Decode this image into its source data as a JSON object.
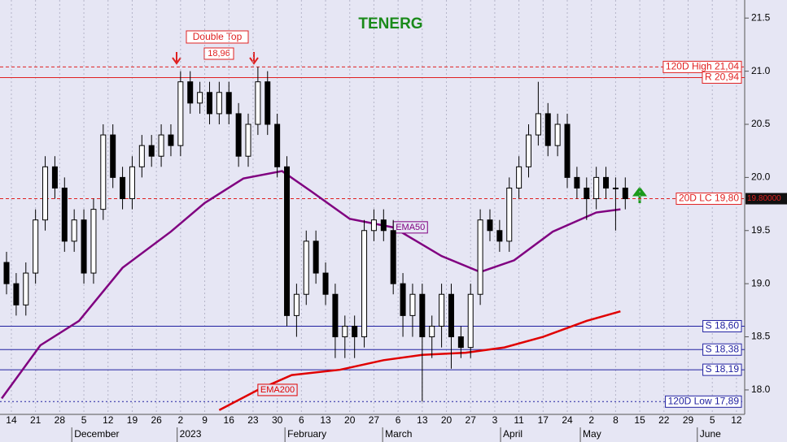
{
  "chart_data": {
    "type": "candlestick",
    "title": "TENERG",
    "x": [
      0,
      2,
      4,
      6,
      8,
      10,
      12,
      14,
      16,
      18,
      20,
      22,
      24,
      26,
      28,
      30,
      32,
      34,
      36,
      38,
      40,
      42,
      44,
      46,
      48,
      50,
      52,
      54,
      56,
      58,
      60,
      62,
      64,
      66,
      68,
      70,
      72,
      74,
      76,
      78,
      80,
      82,
      84,
      86,
      88,
      90,
      92,
      94,
      96,
      98,
      100,
      102,
      104,
      106,
      108,
      110,
      112,
      114,
      116,
      118,
      120,
      122,
      124,
      126,
      128
    ],
    "open": [
      19.2,
      19.0,
      18.8,
      19.1,
      19.6,
      20.1,
      19.9,
      19.4,
      19.6,
      19.1,
      19.7,
      20.4,
      20.0,
      19.8,
      20.1,
      20.3,
      20.2,
      20.4,
      20.3,
      20.9,
      20.7,
      20.8,
      20.6,
      20.8,
      20.6,
      20.2,
      20.5,
      20.9,
      20.5,
      20.1,
      18.7,
      18.9,
      19.4,
      19.1,
      18.9,
      18.5,
      18.6,
      18.5,
      19.5,
      19.6,
      19.5,
      19.0,
      18.7,
      18.9,
      18.5,
      18.6,
      18.9,
      18.5,
      18.4,
      18.9,
      19.6,
      19.5,
      19.4,
      19.9,
      20.1,
      20.4,
      20.6,
      20.3,
      20.5,
      20.0,
      19.9,
      19.8,
      20.0,
      19.9,
      19.9
    ],
    "high": [
      19.3,
      19.1,
      19.2,
      19.7,
      20.2,
      20.2,
      20.0,
      19.7,
      19.7,
      19.8,
      20.5,
      20.5,
      20.1,
      20.2,
      20.4,
      20.4,
      20.5,
      20.5,
      21.0,
      21.0,
      20.9,
      20.9,
      20.9,
      20.9,
      20.7,
      20.6,
      21.04,
      21.0,
      20.6,
      20.2,
      19.0,
      19.5,
      19.5,
      19.2,
      19.0,
      18.7,
      18.7,
      19.6,
      19.7,
      19.7,
      19.6,
      19.1,
      19.0,
      19.0,
      18.7,
      19.0,
      19.0,
      18.6,
      19.0,
      19.7,
      19.7,
      19.6,
      20.0,
      20.2,
      20.5,
      20.9,
      20.7,
      20.6,
      20.6,
      20.1,
      20.0,
      20.1,
      20.1,
      20.0,
      20.0
    ],
    "low": [
      18.9,
      18.7,
      18.7,
      19.0,
      19.5,
      19.8,
      19.3,
      19.3,
      19.0,
      19.0,
      19.6,
      19.9,
      19.7,
      19.7,
      20.0,
      20.1,
      20.1,
      20.2,
      20.2,
      20.6,
      20.6,
      20.5,
      20.5,
      20.5,
      20.1,
      20.1,
      20.4,
      20.4,
      20.0,
      18.6,
      18.5,
      18.8,
      19.0,
      18.8,
      18.3,
      18.3,
      18.3,
      18.4,
      19.4,
      19.4,
      18.9,
      18.5,
      18.5,
      17.89,
      18.3,
      18.4,
      18.2,
      18.3,
      18.3,
      18.8,
      19.4,
      19.3,
      19.3,
      19.8,
      20.0,
      20.3,
      20.2,
      20.2,
      19.9,
      19.8,
      19.6,
      19.7,
      19.8,
      19.5,
      19.7
    ],
    "close": [
      19.0,
      18.8,
      19.1,
      19.6,
      20.1,
      19.9,
      19.4,
      19.6,
      19.1,
      19.7,
      20.4,
      20.0,
      19.8,
      20.1,
      20.3,
      20.2,
      20.4,
      20.3,
      20.9,
      20.7,
      20.8,
      20.6,
      20.8,
      20.6,
      20.2,
      20.5,
      20.9,
      20.5,
      20.1,
      18.7,
      18.9,
      19.4,
      19.1,
      18.9,
      18.5,
      18.6,
      18.5,
      19.5,
      19.6,
      19.5,
      19.0,
      18.7,
      18.9,
      18.5,
      18.6,
      18.9,
      18.5,
      18.4,
      18.9,
      19.6,
      19.5,
      19.4,
      19.9,
      20.1,
      20.4,
      20.6,
      20.3,
      20.5,
      20.0,
      19.9,
      19.8,
      20.0,
      19.9,
      19.9,
      19.8
    ],
    "series": [
      {
        "name": "EMA50",
        "color": "#800080",
        "x": [
          -1,
          7,
          15,
          24,
          34,
          41,
          49,
          57,
          63,
          71,
          80,
          90,
          98,
          105,
          113,
          122,
          127
        ],
        "values": [
          17.92,
          18.42,
          18.65,
          19.15,
          19.49,
          19.76,
          19.99,
          20.06,
          19.87,
          19.61,
          19.53,
          19.26,
          19.11,
          19.22,
          19.49,
          19.67,
          19.7
        ]
      },
      {
        "name": "EMA200",
        "color": "#e00000",
        "x": [
          44,
          52,
          59,
          69,
          78,
          86,
          95,
          103,
          111,
          120,
          127
        ],
        "values": [
          17.81,
          18.0,
          18.14,
          18.19,
          18.28,
          18.33,
          18.35,
          18.4,
          18.5,
          18.65,
          18.74
        ]
      }
    ],
    "levels": [
      {
        "label": "120D High 21,04",
        "value": 21.04,
        "color": "#e02020",
        "style": "dashed"
      },
      {
        "label": "R 20,94",
        "value": 20.94,
        "color": "#e02020",
        "style": "solid"
      },
      {
        "label": "20D LC 19,80",
        "value": 19.8,
        "color": "#e02020",
        "style": "dashed"
      },
      {
        "label": "S 18,60",
        "value": 18.6,
        "color": "#2020a0",
        "style": "solid"
      },
      {
        "label": "S 18,38",
        "value": 18.38,
        "color": "#2020a0",
        "style": "solid"
      },
      {
        "label": "S 18,19",
        "value": 18.19,
        "color": "#2020a0",
        "style": "solid"
      },
      {
        "label": "120D Low 17,89",
        "value": 17.89,
        "color": "#2020a0",
        "style": "dotted"
      }
    ],
    "last_price": {
      "value": 19.8,
      "label": "19.80000"
    },
    "annotations": {
      "pattern": "Double Top",
      "pattern_level": "18,96"
    },
    "xlim": [
      -1.35,
      152.7
    ],
    "ylim": [
      17.77,
      21.67
    ],
    "yticks": [
      {
        "value": 18,
        "label": "18.0"
      },
      {
        "value": 18.5,
        "label": "18.5"
      },
      {
        "value": 19,
        "label": "19.0"
      },
      {
        "value": 19.5,
        "label": "19.5"
      },
      {
        "value": 20,
        "label": "20.0"
      },
      {
        "value": 20.5,
        "label": "20.5"
      },
      {
        "value": 21,
        "label": "21.0"
      },
      {
        "value": 21.5,
        "label": "21.5"
      }
    ],
    "xticks": [
      {
        "value": 1,
        "label": "14"
      },
      {
        "value": 6,
        "label": "21"
      },
      {
        "value": 11,
        "label": "28"
      },
      {
        "value": 16,
        "label": "5"
      },
      {
        "value": 21,
        "label": "12"
      },
      {
        "value": 26,
        "label": "19"
      },
      {
        "value": 31,
        "label": "26"
      },
      {
        "value": 36,
        "label": "2"
      },
      {
        "value": 41,
        "label": "9"
      },
      {
        "value": 46,
        "label": "16"
      },
      {
        "value": 51,
        "label": "23"
      },
      {
        "value": 56,
        "label": "30"
      },
      {
        "value": 61,
        "label": "6"
      },
      {
        "value": 66,
        "label": "13"
      },
      {
        "value": 71,
        "label": "20"
      },
      {
        "value": 76,
        "label": "27"
      },
      {
        "value": 81,
        "label": "6"
      },
      {
        "value": 86,
        "label": "13"
      },
      {
        "value": 91,
        "label": "20"
      },
      {
        "value": 96,
        "label": "27"
      },
      {
        "value": 101,
        "label": "3"
      },
      {
        "value": 106,
        "label": "11"
      },
      {
        "value": 111,
        "label": "17"
      },
      {
        "value": 116,
        "label": "24"
      },
      {
        "value": 121,
        "label": "2"
      },
      {
        "value": 126,
        "label": "8"
      },
      {
        "value": 131,
        "label": "15"
      },
      {
        "value": 136,
        "label": "22"
      },
      {
        "value": 141,
        "label": "29"
      },
      {
        "value": 146,
        "label": "5"
      },
      {
        "value": 151,
        "label": "12"
      }
    ],
    "months": [
      {
        "value": 13.5,
        "label": "December"
      },
      {
        "value": 35.3,
        "label": "2023"
      },
      {
        "value": 57.6,
        "label": "February"
      },
      {
        "value": 77.8,
        "label": "March"
      },
      {
        "value": 102.2,
        "label": "April"
      },
      {
        "value": 118.7,
        "label": "May"
      },
      {
        "value": 142.9,
        "label": "June"
      }
    ],
    "grid": true
  }
}
